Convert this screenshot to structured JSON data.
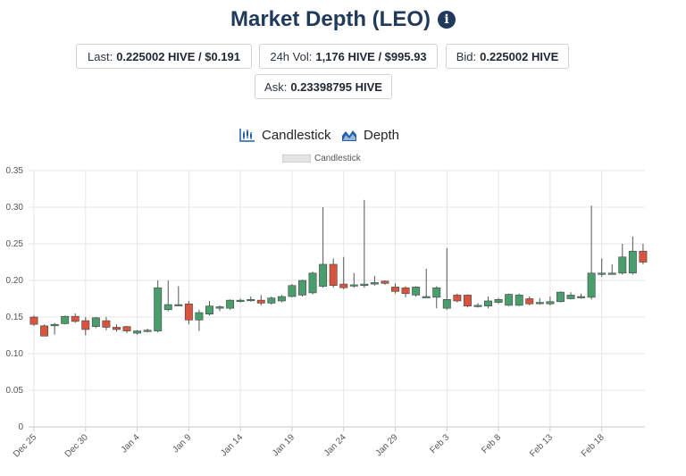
{
  "header": {
    "title": "Market Depth (LEO)",
    "info_icon": "info-circle-icon"
  },
  "stats": {
    "last": {
      "label": "Last:",
      "value": "0.225002 HIVE / $0.191"
    },
    "vol": {
      "label": "24h Vol:",
      "value": "1,176 HIVE / $995.93"
    },
    "bid": {
      "label": "Bid:",
      "value": "0.225002 HIVE"
    },
    "ask": {
      "label": "Ask:",
      "value": "0.23398795 HIVE"
    }
  },
  "tabs": {
    "candlestick": {
      "label": "Candlestick",
      "icon": "candlestick-chart-icon"
    },
    "depth": {
      "label": "Depth",
      "icon": "area-chart-icon"
    }
  },
  "colors": {
    "up": "#4a9e6e",
    "down": "#d7553f",
    "title": "#1f3a5a",
    "grid": "#e6e6e6"
  },
  "chart_data": {
    "type": "candlestick",
    "legend": "Candlestick",
    "legend_position": "top",
    "grid": true,
    "ylim": [
      0,
      0.35
    ],
    "yticks": [
      "0",
      "0.05",
      "0.10",
      "0.15",
      "0.20",
      "0.25",
      "0.30",
      "0.35"
    ],
    "xticks": [
      "Dec 25",
      "Dec 30",
      "Jan 4",
      "Jan 9",
      "Jan 14",
      "Jan 19",
      "Jan 24",
      "Jan 29",
      "Feb 3",
      "Feb 8",
      "Feb 13",
      "Feb 18"
    ],
    "candles": [
      {
        "date": "Dec 25",
        "o": 0.15,
        "h": 0.152,
        "l": 0.138,
        "c": 0.14
      },
      {
        "date": "Dec 26",
        "o": 0.138,
        "h": 0.14,
        "l": 0.124,
        "c": 0.124
      },
      {
        "date": "Dec 27",
        "o": 0.138,
        "h": 0.142,
        "l": 0.126,
        "c": 0.14
      },
      {
        "date": "Dec 28",
        "o": 0.141,
        "h": 0.152,
        "l": 0.14,
        "c": 0.151
      },
      {
        "date": "Dec 29",
        "o": 0.151,
        "h": 0.155,
        "l": 0.142,
        "c": 0.144
      },
      {
        "date": "Dec 30",
        "o": 0.145,
        "h": 0.15,
        "l": 0.125,
        "c": 0.133
      },
      {
        "date": "Dec 31",
        "o": 0.137,
        "h": 0.15,
        "l": 0.135,
        "c": 0.149
      },
      {
        "date": "Jan 1",
        "o": 0.145,
        "h": 0.15,
        "l": 0.132,
        "c": 0.136
      },
      {
        "date": "Jan 2",
        "o": 0.136,
        "h": 0.14,
        "l": 0.13,
        "c": 0.133
      },
      {
        "date": "Jan 3",
        "o": 0.137,
        "h": 0.138,
        "l": 0.128,
        "c": 0.131
      },
      {
        "date": "Jan 4",
        "o": 0.128,
        "h": 0.132,
        "l": 0.126,
        "c": 0.131
      },
      {
        "date": "Jan 5",
        "o": 0.131,
        "h": 0.134,
        "l": 0.129,
        "c": 0.132
      },
      {
        "date": "Jan 6",
        "o": 0.131,
        "h": 0.2,
        "l": 0.129,
        "c": 0.19
      },
      {
        "date": "Jan 7",
        "o": 0.16,
        "h": 0.2,
        "l": 0.158,
        "c": 0.167
      },
      {
        "date": "Jan 8",
        "o": 0.166,
        "h": 0.192,
        "l": 0.165,
        "c": 0.167
      },
      {
        "date": "Jan 9",
        "o": 0.168,
        "h": 0.172,
        "l": 0.14,
        "c": 0.146
      },
      {
        "date": "Jan 10",
        "o": 0.146,
        "h": 0.16,
        "l": 0.131,
        "c": 0.156
      },
      {
        "date": "Jan 11",
        "o": 0.154,
        "h": 0.172,
        "l": 0.152,
        "c": 0.165
      },
      {
        "date": "Jan 12",
        "o": 0.162,
        "h": 0.166,
        "l": 0.158,
        "c": 0.164
      },
      {
        "date": "Jan 13",
        "o": 0.162,
        "h": 0.174,
        "l": 0.16,
        "c": 0.173
      },
      {
        "date": "Jan 14",
        "o": 0.172,
        "h": 0.175,
        "l": 0.17,
        "c": 0.173
      },
      {
        "date": "Jan 15",
        "o": 0.173,
        "h": 0.178,
        "l": 0.171,
        "c": 0.174
      },
      {
        "date": "Jan 16",
        "o": 0.173,
        "h": 0.18,
        "l": 0.166,
        "c": 0.169
      },
      {
        "date": "Jan 17",
        "o": 0.169,
        "h": 0.178,
        "l": 0.167,
        "c": 0.176
      },
      {
        "date": "Jan 18",
        "o": 0.172,
        "h": 0.18,
        "l": 0.17,
        "c": 0.178
      },
      {
        "date": "Jan 19",
        "o": 0.178,
        "h": 0.195,
        "l": 0.177,
        "c": 0.193
      },
      {
        "date": "Jan 20",
        "o": 0.18,
        "h": 0.201,
        "l": 0.178,
        "c": 0.2
      },
      {
        "date": "Jan 21",
        "o": 0.183,
        "h": 0.212,
        "l": 0.181,
        "c": 0.21
      },
      {
        "date": "Jan 22",
        "o": 0.192,
        "h": 0.3,
        "l": 0.19,
        "c": 0.222
      },
      {
        "date": "Jan 23",
        "o": 0.222,
        "h": 0.23,
        "l": 0.19,
        "c": 0.193
      },
      {
        "date": "Jan 24",
        "o": 0.195,
        "h": 0.232,
        "l": 0.188,
        "c": 0.19
      },
      {
        "date": "Jan 25",
        "o": 0.193,
        "h": 0.21,
        "l": 0.19,
        "c": 0.194
      },
      {
        "date": "Jan 26",
        "o": 0.193,
        "h": 0.31,
        "l": 0.19,
        "c": 0.195
      },
      {
        "date": "Jan 27",
        "o": 0.195,
        "h": 0.206,
        "l": 0.193,
        "c": 0.197
      },
      {
        "date": "Jan 28",
        "o": 0.199,
        "h": 0.2,
        "l": 0.194,
        "c": 0.196
      },
      {
        "date": "Jan 29",
        "o": 0.191,
        "h": 0.196,
        "l": 0.182,
        "c": 0.185
      },
      {
        "date": "Jan 30",
        "o": 0.19,
        "h": 0.192,
        "l": 0.177,
        "c": 0.182
      },
      {
        "date": "Jan 31",
        "o": 0.18,
        "h": 0.192,
        "l": 0.178,
        "c": 0.191
      },
      {
        "date": "Feb 1",
        "o": 0.178,
        "h": 0.216,
        "l": 0.176,
        "c": 0.178
      },
      {
        "date": "Feb 2",
        "o": 0.177,
        "h": 0.192,
        "l": 0.162,
        "c": 0.19
      },
      {
        "date": "Feb 3",
        "o": 0.162,
        "h": 0.244,
        "l": 0.16,
        "c": 0.174
      },
      {
        "date": "Feb 4",
        "o": 0.18,
        "h": 0.182,
        "l": 0.17,
        "c": 0.172
      },
      {
        "date": "Feb 5",
        "o": 0.18,
        "h": 0.181,
        "l": 0.163,
        "c": 0.165
      },
      {
        "date": "Feb 6",
        "o": 0.165,
        "h": 0.169,
        "l": 0.163,
        "c": 0.166
      },
      {
        "date": "Feb 7",
        "o": 0.165,
        "h": 0.178,
        "l": 0.162,
        "c": 0.172
      },
      {
        "date": "Feb 8",
        "o": 0.17,
        "h": 0.176,
        "l": 0.168,
        "c": 0.174
      },
      {
        "date": "Feb 9",
        "o": 0.166,
        "h": 0.182,
        "l": 0.165,
        "c": 0.181
      },
      {
        "date": "Feb 10",
        "o": 0.166,
        "h": 0.182,
        "l": 0.165,
        "c": 0.18
      },
      {
        "date": "Feb 11",
        "o": 0.175,
        "h": 0.178,
        "l": 0.166,
        "c": 0.168
      },
      {
        "date": "Feb 12",
        "o": 0.169,
        "h": 0.176,
        "l": 0.167,
        "c": 0.17
      },
      {
        "date": "Feb 13",
        "o": 0.168,
        "h": 0.178,
        "l": 0.166,
        "c": 0.171
      },
      {
        "date": "Feb 14",
        "o": 0.171,
        "h": 0.185,
        "l": 0.17,
        "c": 0.184
      },
      {
        "date": "Feb 15",
        "o": 0.175,
        "h": 0.184,
        "l": 0.174,
        "c": 0.18
      },
      {
        "date": "Feb 16",
        "o": 0.177,
        "h": 0.182,
        "l": 0.175,
        "c": 0.178
      },
      {
        "date": "Feb 17",
        "o": 0.177,
        "h": 0.302,
        "l": 0.174,
        "c": 0.21
      },
      {
        "date": "Feb 18",
        "o": 0.21,
        "h": 0.23,
        "l": 0.205,
        "c": 0.21
      },
      {
        "date": "Feb 19",
        "o": 0.21,
        "h": 0.222,
        "l": 0.208,
        "c": 0.21
      },
      {
        "date": "Feb 20",
        "o": 0.21,
        "h": 0.25,
        "l": 0.208,
        "c": 0.232
      },
      {
        "date": "Feb 21",
        "o": 0.21,
        "h": 0.26,
        "l": 0.208,
        "c": 0.24
      },
      {
        "date": "Feb 22",
        "o": 0.24,
        "h": 0.25,
        "l": 0.222,
        "c": 0.225
      }
    ]
  }
}
